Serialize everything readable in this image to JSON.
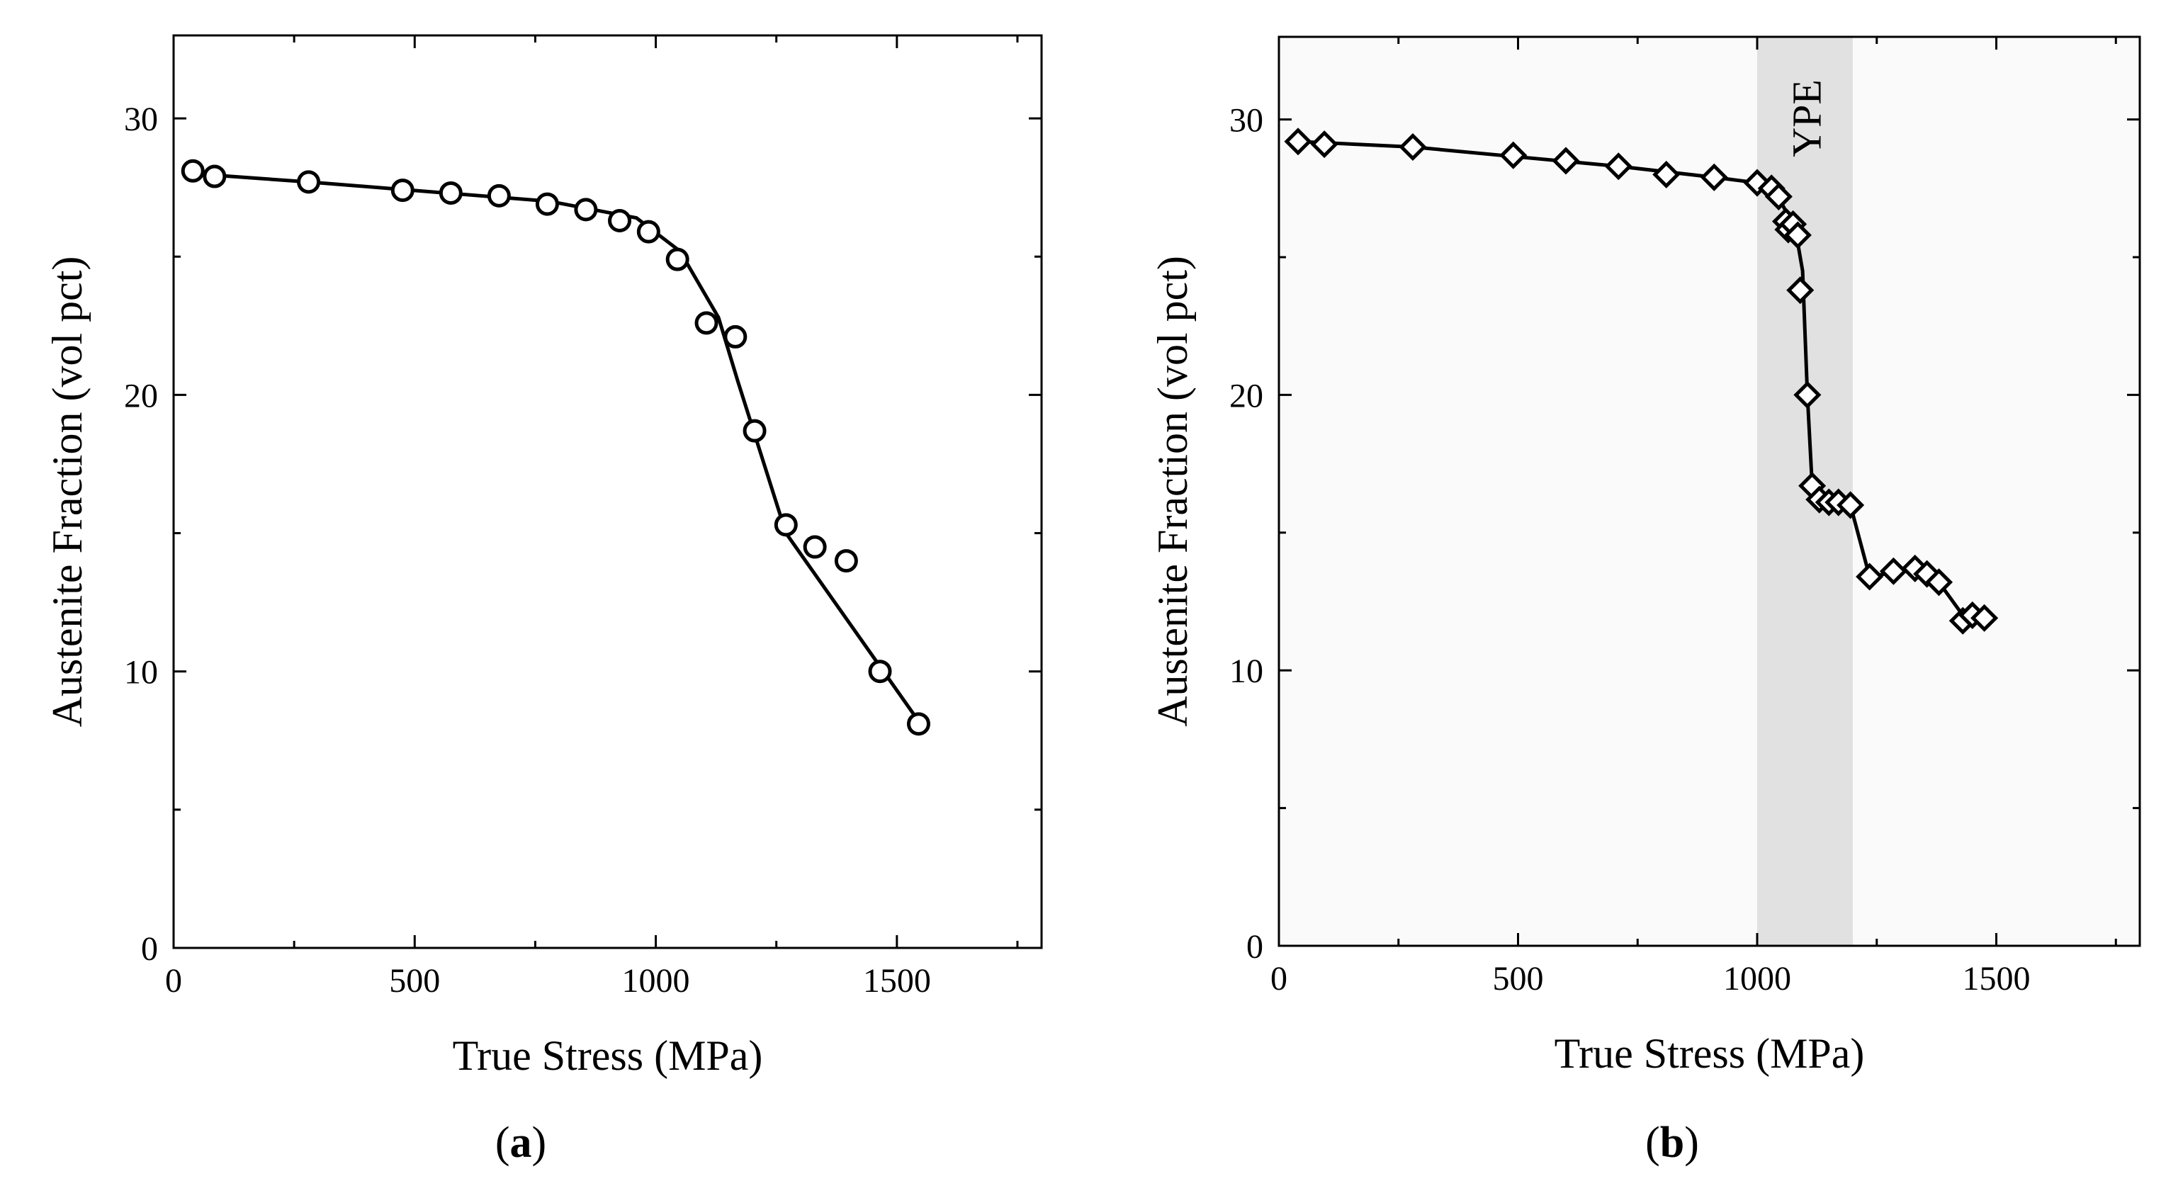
{
  "chart_data": [
    {
      "type": "line",
      "panel_label": "a",
      "xlabel": "True Stress (MPa)",
      "ylabel": "Austenite Fraction (vol pct)",
      "xlim": [
        0,
        1800
      ],
      "ylim": [
        0,
        33
      ],
      "xticks": [
        0,
        500,
        1000,
        1500
      ],
      "yticks": [
        0,
        10,
        20,
        30
      ],
      "marker": "circle",
      "points": {
        "x": [
          40,
          85,
          280,
          475,
          575,
          675,
          775,
          855,
          925,
          985,
          1045,
          1105,
          1165,
          1205,
          1270,
          1330,
          1395,
          1465,
          1545
        ],
        "y": [
          28.1,
          27.9,
          27.7,
          27.4,
          27.3,
          27.2,
          26.9,
          26.7,
          26.3,
          25.9,
          24.9,
          22.6,
          22.1,
          18.7,
          15.3,
          14.5,
          14.0,
          10.0,
          8.1
        ]
      },
      "fit_line": {
        "x": [
          40,
          280,
          780,
          960,
          1050,
          1130,
          1170,
          1270,
          1545
        ],
        "y": [
          28.0,
          27.7,
          27.0,
          26.4,
          25.2,
          22.8,
          20.5,
          15.0,
          8.2
        ]
      }
    },
    {
      "type": "line",
      "panel_label": "b",
      "xlabel": "True Stress (MPa)",
      "ylabel": "Austenite Fraction (vol pct)",
      "xlim": [
        0,
        1800
      ],
      "ylim": [
        0,
        33
      ],
      "xticks": [
        0,
        500,
        1000,
        1500
      ],
      "yticks": [
        0,
        10,
        20,
        30
      ],
      "marker": "diamond",
      "band": {
        "label": "YPE",
        "x_range": [
          1000,
          1200
        ]
      },
      "points": {
        "x": [
          40,
          95,
          280,
          490,
          600,
          710,
          810,
          910,
          1000,
          1030,
          1045,
          1060,
          1065,
          1075,
          1085,
          1090,
          1105,
          1115,
          1130,
          1150,
          1170,
          1195,
          1235,
          1285,
          1330,
          1355,
          1380,
          1430,
          1450,
          1475
        ],
        "y": [
          29.2,
          29.1,
          29.0,
          28.7,
          28.5,
          28.3,
          28.0,
          27.9,
          27.7,
          27.5,
          27.2,
          26.3,
          26.0,
          26.2,
          25.8,
          23.8,
          20.0,
          16.7,
          16.2,
          16.1,
          16.1,
          16.0,
          13.4,
          13.6,
          13.7,
          13.5,
          13.2,
          11.8,
          12.0,
          11.9
        ]
      },
      "fit_line": {
        "x": [
          40,
          280,
          710,
          910,
          1000,
          1050,
          1080,
          1095,
          1105,
          1115,
          1130,
          1195,
          1235,
          1330,
          1380,
          1430,
          1475
        ],
        "y": [
          29.2,
          29.0,
          28.3,
          27.9,
          27.7,
          27.0,
          26.0,
          24.5,
          20.0,
          16.7,
          16.2,
          16.0,
          13.4,
          13.7,
          13.2,
          12.0,
          11.9
        ]
      }
    }
  ]
}
